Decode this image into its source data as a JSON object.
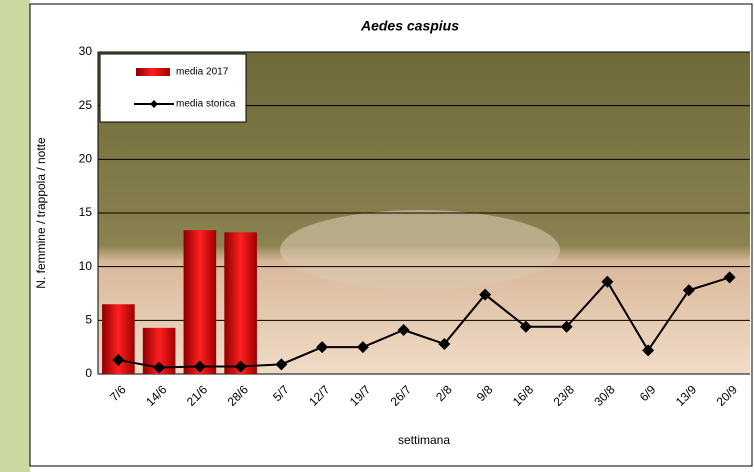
{
  "chart_data": {
    "type": "bar",
    "title": "Aedes caspius",
    "ylabel": "N. femmine / trappola / notte",
    "xlabel": "settimana",
    "categories": [
      "7/6",
      "14/6",
      "21/6",
      "28/6",
      "5/7",
      "12/7",
      "19/7",
      "26/7",
      "2/8",
      "9/8",
      "16/8",
      "23/8",
      "30/8",
      "6/9",
      "13/9",
      "20/9"
    ],
    "series": [
      {
        "name": "media 2017",
        "type": "bar",
        "color": "#cc0000",
        "values": [
          6.5,
          4.3,
          13.4,
          13.2,
          null,
          null,
          null,
          null,
          null,
          null,
          null,
          null,
          null,
          null,
          null,
          null
        ]
      },
      {
        "name": "media storica",
        "type": "line",
        "color": "#000000",
        "values": [
          1.3,
          0.6,
          0.7,
          0.7,
          0.9,
          2.5,
          2.5,
          4.1,
          2.8,
          7.4,
          4.4,
          4.4,
          8.6,
          2.2,
          7.8,
          9.0
        ]
      }
    ],
    "ylim": [
      0,
      30
    ],
    "yticks": [
      0,
      5,
      10,
      15,
      20,
      25,
      30
    ],
    "grid": true,
    "legend": "upper left"
  }
}
